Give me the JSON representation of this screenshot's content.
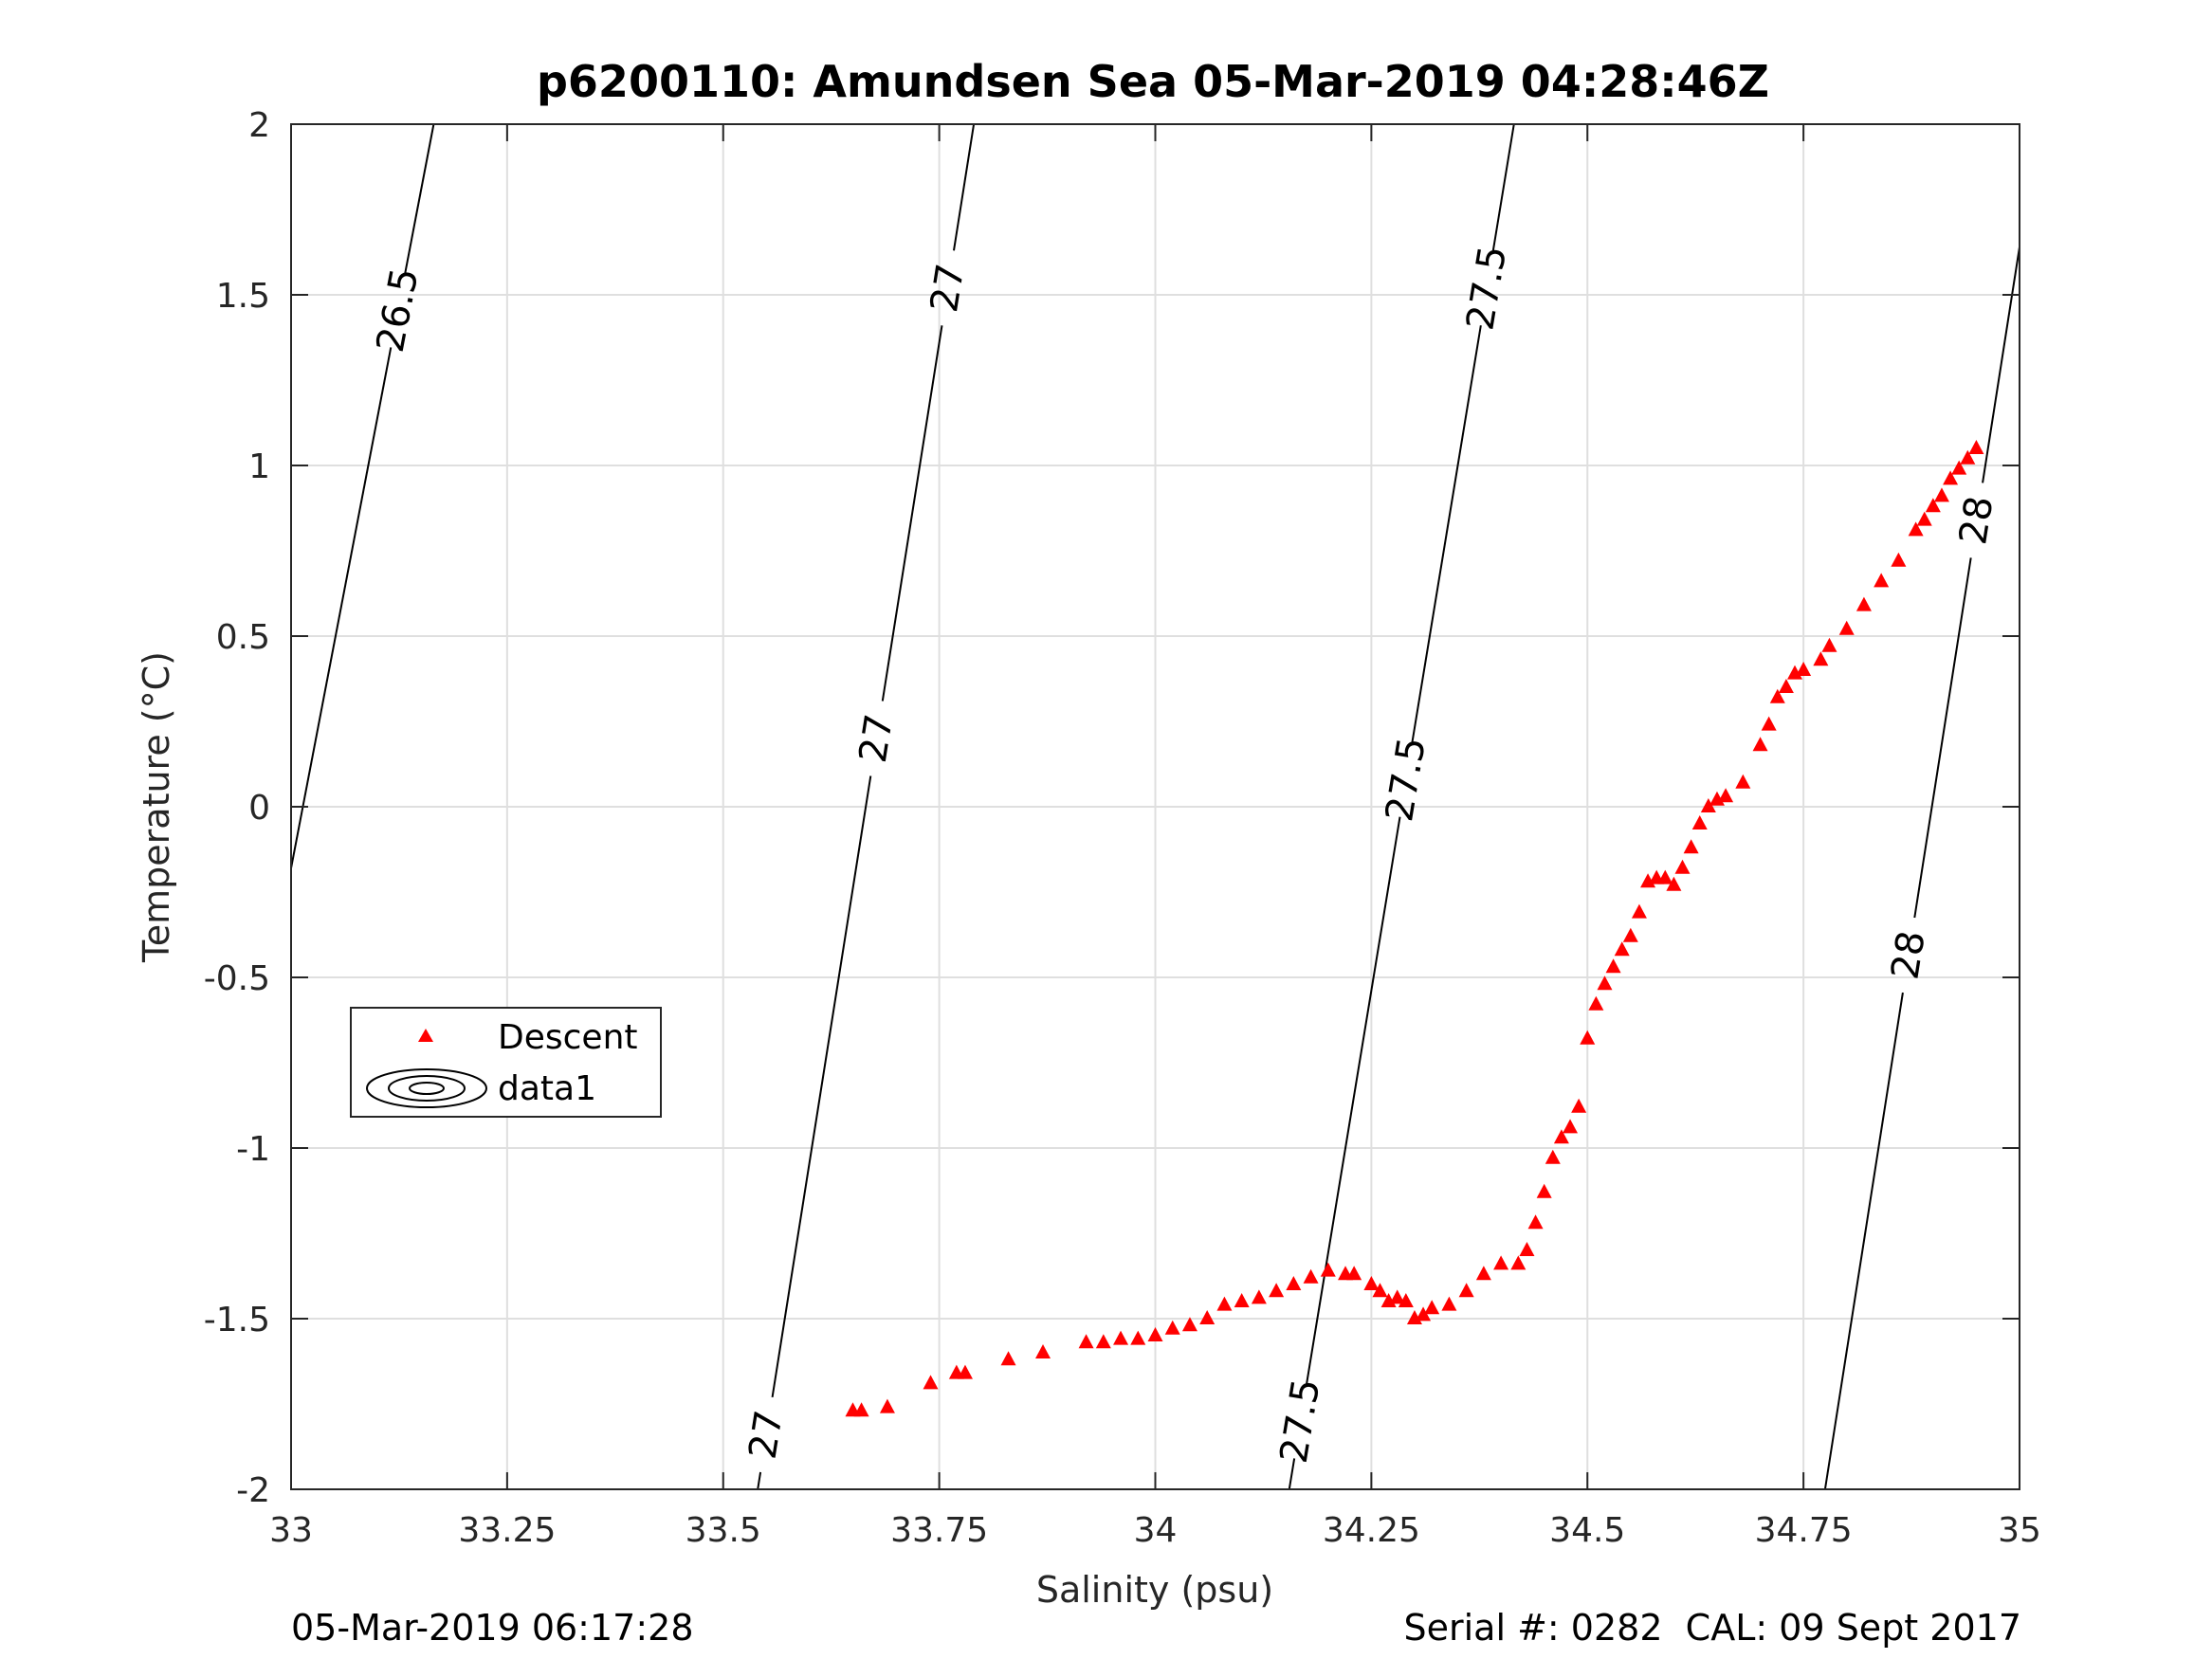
{
  "chart_data": {
    "type": "scatter",
    "title": "p6200110: Amundsen Sea 05-Mar-2019 04:28:46Z",
    "xlabel": "Salinity (psu)",
    "ylabel": "Temperature (°C)",
    "xlim": [
      33,
      35
    ],
    "ylim": [
      -2,
      2
    ],
    "xticks": [
      33,
      33.25,
      33.5,
      33.75,
      34,
      34.25,
      34.5,
      34.75,
      35
    ],
    "xtick_labels": [
      "33",
      "33.25",
      "33.5",
      "33.75",
      "34",
      "34.25",
      "34.5",
      "34.75",
      "35"
    ],
    "yticks": [
      -2,
      -1.5,
      -1,
      -0.5,
      0,
      0.5,
      1,
      1.5,
      2
    ],
    "ytick_labels": [
      "-2",
      "-1.5",
      "-1",
      "-0.5",
      "0",
      "0.5",
      "1",
      "1.5",
      "2"
    ],
    "grid": true,
    "legend_position": "lower-left",
    "legend": [
      "Descent",
      "data1"
    ],
    "series": [
      {
        "name": "Descent",
        "marker": "triangle",
        "color": "#ff0000",
        "x": [
          33.65,
          33.66,
          33.69,
          33.74,
          33.77,
          33.78,
          33.83,
          33.87,
          33.92,
          33.94,
          33.96,
          33.98,
          34.0,
          34.02,
          34.04,
          34.06,
          34.08,
          34.1,
          34.12,
          34.14,
          34.16,
          34.18,
          34.2,
          34.22,
          34.23,
          34.25,
          34.26,
          34.27,
          34.28,
          34.29,
          34.3,
          34.31,
          34.32,
          34.34,
          34.36,
          34.38,
          34.4,
          34.42,
          34.43,
          34.44,
          34.45,
          34.46,
          34.47,
          34.48,
          34.49,
          34.5,
          34.51,
          34.52,
          34.53,
          34.54,
          34.55,
          34.56,
          34.57,
          34.58,
          34.59,
          34.6,
          34.61,
          34.62,
          34.63,
          34.64,
          34.65,
          34.66,
          34.68,
          34.7,
          34.71,
          34.72,
          34.73,
          34.74,
          34.75,
          34.77,
          34.78,
          34.8,
          34.82,
          34.84,
          34.86,
          34.88,
          34.89,
          34.9,
          34.91,
          34.92,
          34.93,
          34.94,
          34.95
        ],
        "y": [
          -1.77,
          -1.77,
          -1.76,
          -1.69,
          -1.66,
          -1.66,
          -1.62,
          -1.6,
          -1.57,
          -1.57,
          -1.56,
          -1.56,
          -1.55,
          -1.53,
          -1.52,
          -1.5,
          -1.46,
          -1.45,
          -1.44,
          -1.42,
          -1.4,
          -1.38,
          -1.36,
          -1.37,
          -1.37,
          -1.4,
          -1.42,
          -1.45,
          -1.44,
          -1.45,
          -1.5,
          -1.49,
          -1.47,
          -1.46,
          -1.42,
          -1.37,
          -1.34,
          -1.34,
          -1.3,
          -1.22,
          -1.13,
          -1.03,
          -0.97,
          -0.94,
          -0.88,
          -0.68,
          -0.58,
          -0.52,
          -0.47,
          -0.42,
          -0.38,
          -0.31,
          -0.22,
          -0.21,
          -0.21,
          -0.23,
          -0.18,
          -0.12,
          -0.05,
          0.0,
          0.02,
          0.03,
          0.07,
          0.18,
          0.24,
          0.32,
          0.35,
          0.39,
          0.4,
          0.43,
          0.47,
          0.52,
          0.59,
          0.66,
          0.72,
          0.81,
          0.84,
          0.88,
          0.91,
          0.96,
          0.99,
          1.02,
          1.05
        ]
      }
    ],
    "contours": {
      "name": "data1",
      "levels": [
        26.5,
        27,
        27.5,
        28
      ],
      "labels": [
        "26.5",
        "27",
        "27",
        "27",
        "27.5",
        "27.5",
        "27.5",
        "28",
        "28"
      ],
      "lines": [
        {
          "level": "26.5",
          "x_at_bottom": 33.0,
          "y_at_bottom": -0.18,
          "x_at_top": 33.165,
          "y_at_top": 2.0
        },
        {
          "level": "27",
          "x_at_bottom": 33.54,
          "y_at_bottom": -2.0,
          "x_at_top": 33.79,
          "y_at_top": 2.0
        },
        {
          "level": "27.5",
          "x_at_bottom": 34.155,
          "y_at_bottom": -2.0,
          "x_at_top": 34.415,
          "y_at_top": 2.0
        },
        {
          "level": "28",
          "x_at_bottom": 34.775,
          "y_at_bottom": -2.0,
          "x_at_top": 35.0,
          "y_at_top": 1.64
        }
      ]
    }
  },
  "footer": {
    "timestamp": "05-Mar-2019 06:17:28",
    "serial": "Serial #: 0282  CAL: 09 Sept 2017"
  }
}
